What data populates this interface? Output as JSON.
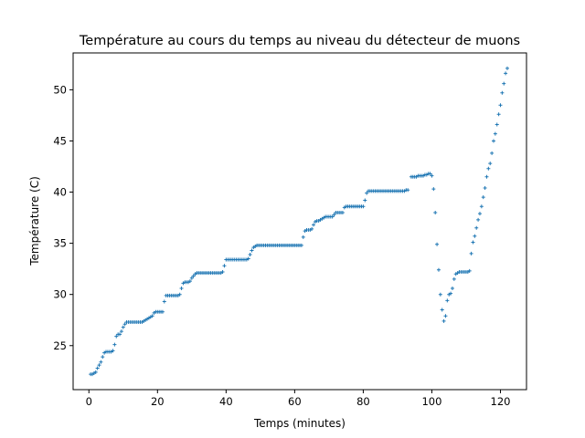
{
  "chart_data": {
    "type": "scatter",
    "title": "Température au cours du temps au niveau du détecteur de muons",
    "xlabel": "Temps (minutes)",
    "ylabel": "Température (C)",
    "xlim": [
      -4.6,
      127.6
    ],
    "ylim": [
      20.7,
      53.6
    ],
    "xticks": [
      0,
      20,
      40,
      60,
      80,
      100,
      120
    ],
    "yticks": [
      25,
      30,
      35,
      40,
      45,
      50
    ],
    "marker": "+",
    "color": "#1f77b4",
    "grid": false,
    "legend": "none",
    "series": [
      {
        "x": [
          0.5,
          1,
          1.5,
          2,
          2.5,
          3,
          3.5,
          4,
          4.5,
          5,
          5.5,
          6,
          6.5,
          7,
          7.5,
          8,
          8.5,
          9,
          9.5,
          10,
          10.5,
          11,
          11.5,
          12,
          12.5,
          13,
          13.5,
          14,
          14.5,
          15,
          15.5,
          16,
          16.5,
          17,
          17.5,
          18,
          18.5,
          19,
          19.5,
          20,
          20.5,
          21,
          21.5,
          22,
          22.5,
          23,
          23.5,
          24,
          24.5,
          25,
          25.5,
          26,
          26.5,
          27,
          27.5,
          28,
          28.5,
          29,
          29.5,
          30,
          30.5,
          31,
          31.5,
          32,
          32.5,
          33,
          33.5,
          34,
          34.5,
          35,
          35.5,
          36,
          36.5,
          37,
          37.5,
          38,
          38.5,
          39,
          39.5,
          40,
          40.5,
          41,
          41.5,
          42,
          42.5,
          43,
          43.5,
          44,
          44.5,
          45,
          45.5,
          46,
          46.5,
          47,
          47.5,
          48,
          48.5,
          49,
          49.5,
          50,
          50.5,
          51,
          51.5,
          52,
          52.5,
          53,
          53.5,
          54,
          54.5,
          55,
          55.5,
          56,
          56.5,
          57,
          57.5,
          58,
          58.5,
          59,
          59.5,
          60,
          60.5,
          61,
          61.5,
          62,
          62.5,
          63,
          63.5,
          64,
          64.5,
          65,
          65.5,
          66,
          66.5,
          67,
          67.5,
          68,
          68.5,
          69,
          69.5,
          70,
          70.5,
          71,
          71.5,
          72,
          72.5,
          73,
          73.5,
          74,
          74.5,
          75,
          75.5,
          76,
          76.5,
          77,
          77.5,
          78,
          78.5,
          79,
          79.5,
          80,
          80.5,
          81,
          81.5,
          82,
          82.5,
          83,
          83.5,
          84,
          84.5,
          85,
          85.5,
          86,
          86.5,
          87,
          87.5,
          88,
          88.5,
          89,
          89.5,
          90,
          90.5,
          91,
          91.5,
          92,
          92.5,
          93,
          94,
          94.5,
          95,
          95.5,
          96,
          96.5,
          97,
          97.5,
          98,
          98.5,
          99,
          99.5,
          100,
          100.5,
          101,
          101.5,
          102,
          102.5,
          103,
          103.5,
          104,
          104.5,
          105,
          105.5,
          106,
          106.5,
          107,
          107.5,
          108,
          108.5,
          109,
          109.5,
          110,
          110.5,
          111,
          111.5,
          112,
          112.5,
          113,
          113.5,
          114,
          114.5,
          115,
          115.5,
          116,
          116.5,
          117,
          117.5,
          118,
          118.5,
          119,
          119.5,
          120,
          120.5,
          121,
          121.5,
          122
        ],
        "y": [
          22.2,
          22.2,
          22.3,
          22.4,
          22.8,
          23.1,
          23.4,
          23.9,
          24.3,
          24.4,
          24.4,
          24.4,
          24.4,
          24.5,
          25.1,
          25.9,
          26.1,
          26.1,
          26.4,
          26.8,
          27.1,
          27.3,
          27.3,
          27.3,
          27.3,
          27.3,
          27.3,
          27.3,
          27.3,
          27.3,
          27.3,
          27.4,
          27.5,
          27.6,
          27.7,
          27.8,
          27.9,
          28.2,
          28.3,
          28.3,
          28.3,
          28.3,
          28.3,
          29.3,
          29.9,
          29.9,
          29.9,
          29.9,
          29.9,
          29.9,
          29.9,
          29.9,
          30.0,
          30.6,
          31.1,
          31.2,
          31.2,
          31.2,
          31.3,
          31.6,
          31.8,
          32.0,
          32.1,
          32.1,
          32.1,
          32.1,
          32.1,
          32.1,
          32.1,
          32.1,
          32.1,
          32.1,
          32.1,
          32.1,
          32.1,
          32.1,
          32.1,
          32.2,
          32.8,
          33.4,
          33.4,
          33.4,
          33.4,
          33.4,
          33.4,
          33.4,
          33.4,
          33.4,
          33.4,
          33.4,
          33.4,
          33.4,
          33.5,
          33.9,
          34.3,
          34.6,
          34.7,
          34.8,
          34.8,
          34.8,
          34.8,
          34.8,
          34.8,
          34.8,
          34.8,
          34.8,
          34.8,
          34.8,
          34.8,
          34.8,
          34.8,
          34.8,
          34.8,
          34.8,
          34.8,
          34.8,
          34.8,
          34.8,
          34.8,
          34.8,
          34.8,
          34.8,
          34.8,
          34.8,
          35.6,
          36.2,
          36.3,
          36.3,
          36.3,
          36.4,
          36.8,
          37.1,
          37.2,
          37.2,
          37.3,
          37.4,
          37.5,
          37.6,
          37.6,
          37.6,
          37.6,
          37.6,
          37.8,
          38.0,
          38.0,
          38.0,
          38.0,
          38.0,
          38.5,
          38.6,
          38.6,
          38.6,
          38.6,
          38.6,
          38.6,
          38.6,
          38.6,
          38.6,
          38.6,
          38.6,
          39.2,
          39.9,
          40.1,
          40.1,
          40.1,
          40.1,
          40.1,
          40.1,
          40.1,
          40.1,
          40.1,
          40.1,
          40.1,
          40.1,
          40.1,
          40.1,
          40.1,
          40.1,
          40.1,
          40.1,
          40.1,
          40.1,
          40.1,
          40.1,
          40.2,
          40.2,
          41.5,
          41.5,
          41.5,
          41.5,
          41.6,
          41.6,
          41.6,
          41.6,
          41.7,
          41.7,
          41.8,
          41.8,
          41.6,
          40.3,
          38.0,
          34.9,
          32.4,
          30.0,
          28.5,
          27.4,
          27.9,
          29.4,
          30.0,
          30.1,
          30.6,
          31.5,
          32.0,
          32.1,
          32.2,
          32.2,
          32.2,
          32.2,
          32.2,
          32.2,
          32.3,
          34.0,
          35.1,
          35.7,
          36.5,
          37.3,
          37.9,
          38.6,
          39.5,
          40.4,
          41.5,
          42.3,
          42.8,
          43.8,
          45.0,
          45.7,
          46.6,
          47.6,
          48.5,
          49.7,
          50.6,
          51.6,
          52.1
        ]
      }
    ]
  }
}
